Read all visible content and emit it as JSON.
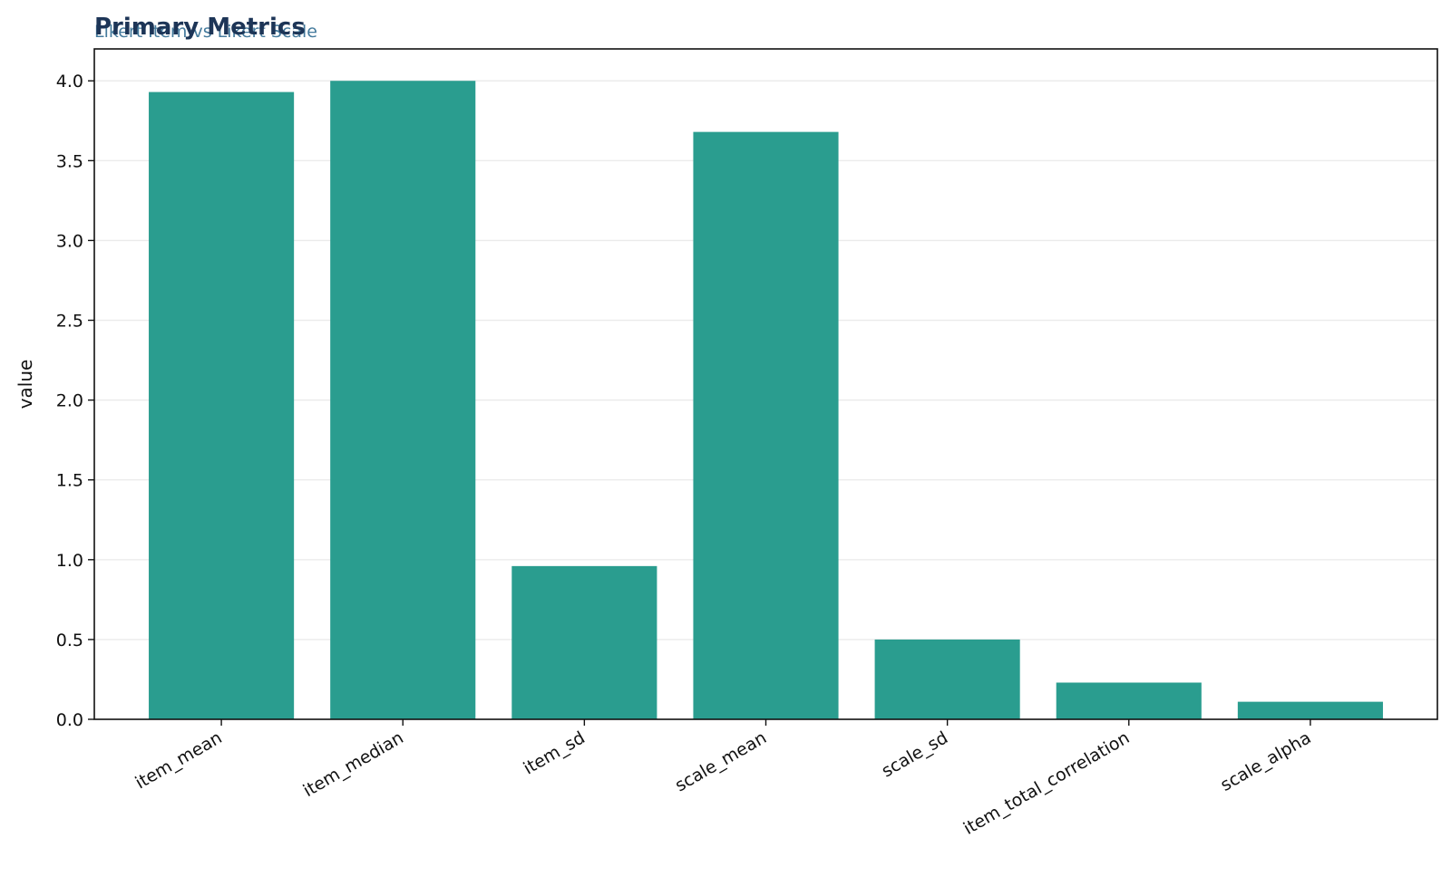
{
  "chart_data": {
    "type": "bar",
    "title": "Primary Metrics",
    "subtitle": "Likert Item vs Likert Scale",
    "xlabel": "",
    "ylabel": "value",
    "categories": [
      "item_mean",
      "item_median",
      "item_sd",
      "scale_mean",
      "scale_sd",
      "item_total_correlation",
      "scale_alpha"
    ],
    "values": [
      3.93,
      4.0,
      0.96,
      3.68,
      0.5,
      0.23,
      0.11
    ],
    "ylim": [
      0,
      4.2
    ],
    "yticks": [
      "0.0",
      "0.5",
      "1.0",
      "1.5",
      "2.0",
      "2.5",
      "3.0",
      "3.5",
      "4.0"
    ],
    "grid": "horizontal",
    "legend": "none",
    "colors": {
      "bar": "#2a9d8f",
      "title": "#1d3557",
      "subtitle": "#457b9d",
      "grid": "#ebebeb",
      "axis": "#111111"
    }
  }
}
